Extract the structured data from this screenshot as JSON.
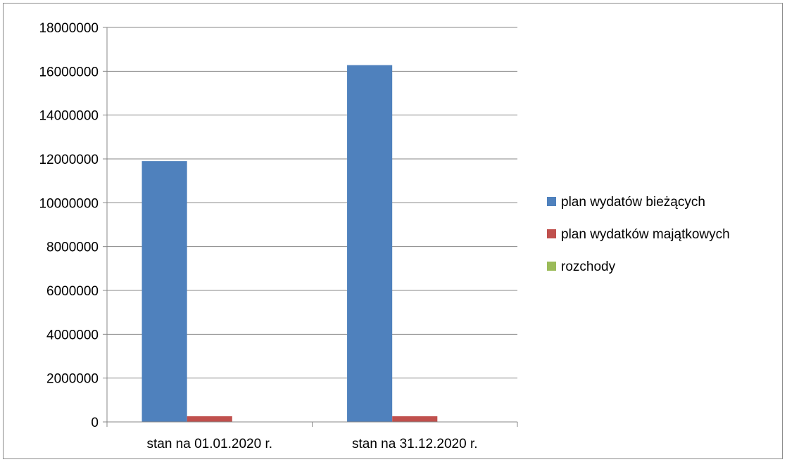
{
  "chart_data": {
    "type": "bar",
    "title": "",
    "xlabel": "",
    "ylabel": "",
    "categories": [
      "stan na 01.01.2020 r.",
      "stan na 31.12.2020 r."
    ],
    "series": [
      {
        "name": "plan wydatów bieżących",
        "color": "#4f81bd",
        "values": [
          11900000,
          16280000
        ]
      },
      {
        "name": "plan wydatków majątkowych",
        "color": "#c0504d",
        "values": [
          260000,
          260000
        ]
      },
      {
        "name": "rozchody",
        "color": "#9bbb59",
        "values": [
          0,
          0
        ]
      }
    ],
    "ylim": [
      0,
      18000000
    ],
    "yticks": [
      "0",
      "2000000",
      "4000000",
      "6000000",
      "8000000",
      "10000000",
      "12000000",
      "14000000",
      "16000000",
      "18000000"
    ],
    "grid": true,
    "legend_position": "right"
  }
}
